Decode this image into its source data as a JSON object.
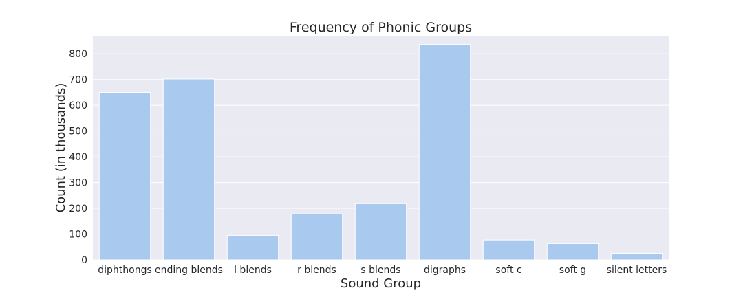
{
  "chart_data": {
    "type": "bar",
    "title": "Frequency of Phonic Groups",
    "xlabel": "Sound Group",
    "ylabel": "Count (in thousands)",
    "categories": [
      "diphthongs",
      "ending blends",
      "l blends",
      "r blends",
      "s blends",
      "digraphs",
      "soft c",
      "soft g",
      "silent letters"
    ],
    "values": [
      650,
      702,
      95,
      178,
      218,
      836,
      77,
      63,
      25
    ],
    "ylim": [
      0,
      870
    ],
    "yticks": [
      0,
      100,
      200,
      300,
      400,
      500,
      600,
      700,
      800
    ],
    "grid": true,
    "legend": "none",
    "colors": {
      "bar": "#a9c9ef",
      "background": "#eaeaf2",
      "grid": "#ffffff",
      "text": "#262626"
    }
  }
}
